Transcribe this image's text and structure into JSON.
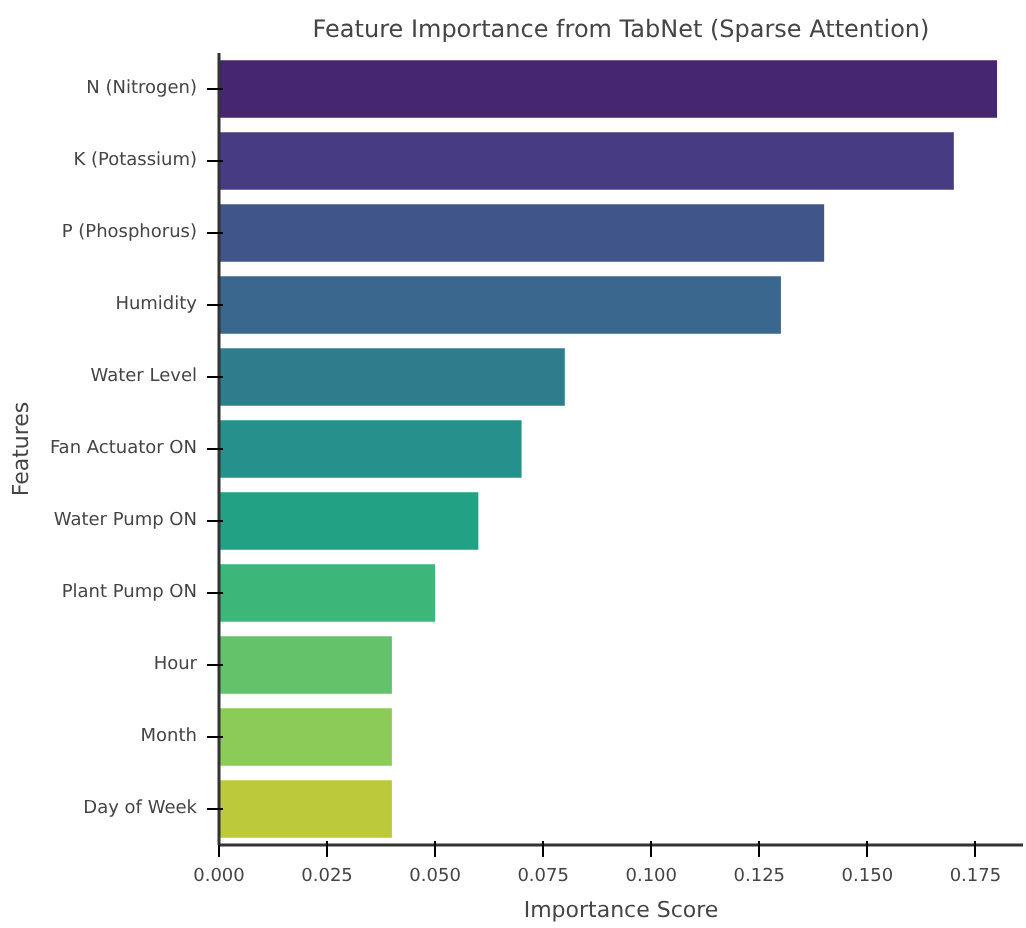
{
  "chart_data": {
    "type": "bar",
    "orientation": "horizontal",
    "title": "Feature Importance from TabNet (Sparse Attention)",
    "xlabel": "Importance Score",
    "ylabel": "Features",
    "categories": [
      "N (Nitrogen)",
      "K (Potassium)",
      "P (Phosphorus)",
      "Humidity",
      "Water Level",
      "Fan Actuator ON",
      "Water Pump ON",
      "Plant Pump ON",
      "Hour",
      "Month",
      "Day of Week"
    ],
    "values": [
      0.18,
      0.17,
      0.14,
      0.13,
      0.08,
      0.07,
      0.06,
      0.05,
      0.04,
      0.04,
      0.04
    ],
    "colors": [
      "#46266e",
      "#473c84",
      "#40558a",
      "#3a678d",
      "#2e7d8d",
      "#26908c",
      "#22a185",
      "#3db67a",
      "#64c26a",
      "#8bcb58",
      "#bcc93a"
    ],
    "xlim": [
      0,
      0.186
    ],
    "xticks": [
      {
        "value": 0,
        "label": "0.000"
      },
      {
        "value": 0.025,
        "label": "0.025"
      },
      {
        "value": 0.05,
        "label": "0.050"
      },
      {
        "value": 0.075,
        "label": "0.075"
      },
      {
        "value": 0.1,
        "label": "0.100"
      },
      {
        "value": 0.125,
        "label": "0.125"
      },
      {
        "value": 0.15,
        "label": "0.150"
      },
      {
        "value": 0.175,
        "label": "0.175"
      }
    ],
    "grid": false
  }
}
